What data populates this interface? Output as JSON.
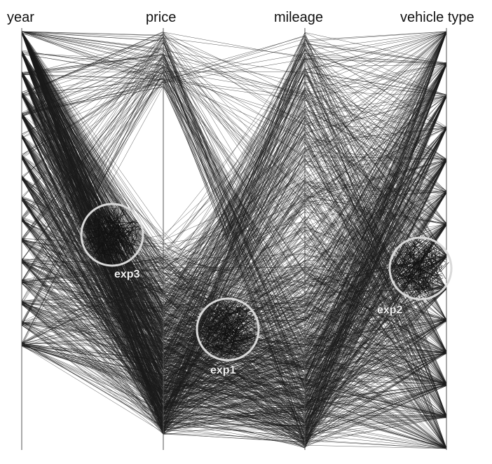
{
  "chart_data": {
    "type": "parallel-coordinates",
    "title": "",
    "axes": [
      {
        "name": "year"
      },
      {
        "name": "price"
      },
      {
        "name": "mileage"
      },
      {
        "name": "vehicle type"
      }
    ],
    "annotations": [
      {
        "label": "exp3",
        "axis_between": [
          "year",
          "price"
        ]
      },
      {
        "label": "exp1",
        "axis_between": [
          "price",
          "mileage"
        ]
      },
      {
        "label": "exp2",
        "axis_between": [
          "mileage",
          "vehicle type"
        ]
      }
    ],
    "grid": false,
    "legend": "none",
    "colors": {
      "lines": "#1a1a1a",
      "axes": "#555555",
      "highlight": "#d9d9d9",
      "background": "#ffffff"
    }
  }
}
